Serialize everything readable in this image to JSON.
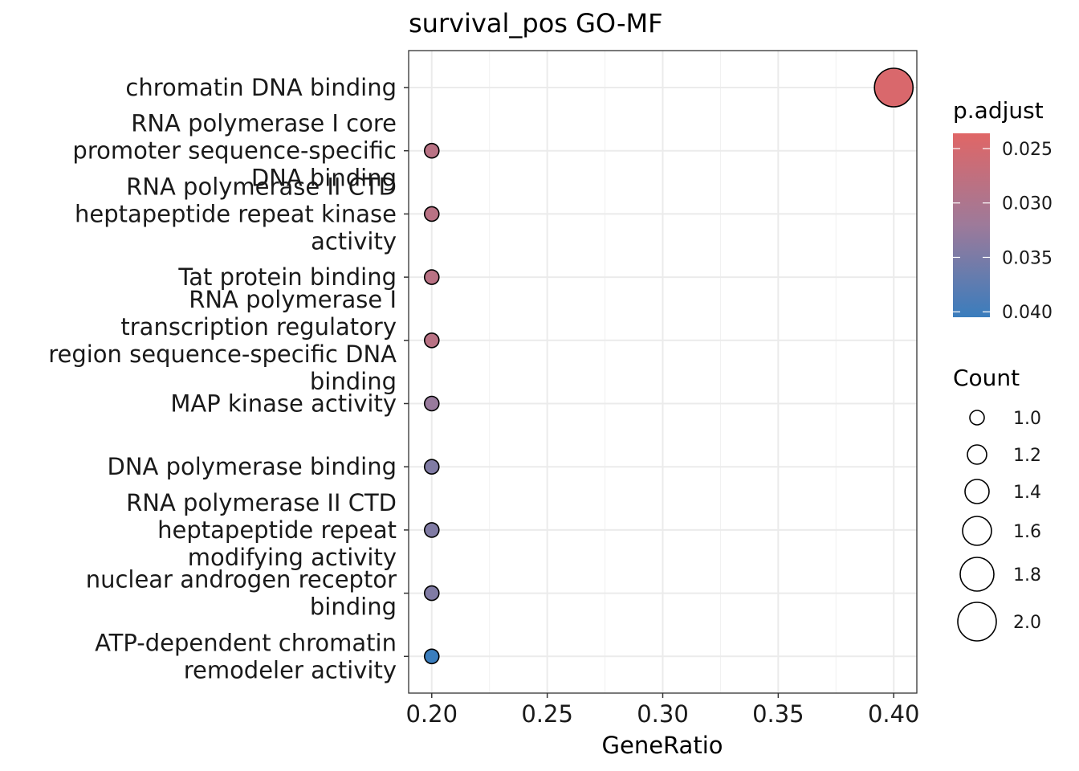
{
  "chart_data": {
    "type": "scatter",
    "title": "survival_pos GO-MF",
    "xlabel": "GeneRatio",
    "ylabel": "",
    "xlim": [
      0.19,
      0.41
    ],
    "x_ticks": [
      "0.20",
      "0.25",
      "0.30",
      "0.35",
      "0.40"
    ],
    "grid": true,
    "legend_position": "right",
    "terms": [
      {
        "label_lines": [
          "chromatin DNA binding"
        ],
        "gene_ratio": 0.4,
        "count": 2,
        "p_adjust": 0.0245
      },
      {
        "label_lines": [
          "RNA polymerase I core",
          "promoter sequence-specific",
          "DNA binding"
        ],
        "gene_ratio": 0.2,
        "count": 1,
        "p_adjust": 0.0285
      },
      {
        "label_lines": [
          "RNA polymerase II CTD",
          "heptapeptide repeat kinase",
          "activity"
        ],
        "gene_ratio": 0.2,
        "count": 1,
        "p_adjust": 0.0285
      },
      {
        "label_lines": [
          "Tat protein binding"
        ],
        "gene_ratio": 0.2,
        "count": 1,
        "p_adjust": 0.0285
      },
      {
        "label_lines": [
          "RNA polymerase I",
          "transcription regulatory",
          "region sequence-specific DNA",
          "binding"
        ],
        "gene_ratio": 0.2,
        "count": 1,
        "p_adjust": 0.0285
      },
      {
        "label_lines": [
          "MAP kinase activity"
        ],
        "gene_ratio": 0.2,
        "count": 1,
        "p_adjust": 0.0325
      },
      {
        "label_lines": [
          "DNA polymerase binding"
        ],
        "gene_ratio": 0.2,
        "count": 1,
        "p_adjust": 0.0345
      },
      {
        "label_lines": [
          "RNA polymerase II CTD",
          "heptapeptide repeat",
          "modifying activity"
        ],
        "gene_ratio": 0.2,
        "count": 1,
        "p_adjust": 0.0345
      },
      {
        "label_lines": [
          "nuclear androgen receptor",
          "binding"
        ],
        "gene_ratio": 0.2,
        "count": 1,
        "p_adjust": 0.0345
      },
      {
        "label_lines": [
          "ATP-dependent chromatin",
          "remodeler activity"
        ],
        "gene_ratio": 0.2,
        "count": 1,
        "p_adjust": 0.0405
      }
    ],
    "color_legend": {
      "title": "p.adjust",
      "range": [
        0.0236,
        0.0405
      ],
      "ticks": [
        0.025,
        0.03,
        0.035,
        0.04
      ],
      "tick_labels": [
        "0.025",
        "0.030",
        "0.035",
        "0.040"
      ],
      "low_color": "#e06666",
      "mid_color": "#9d7a9a",
      "high_color": "#3a7dbd"
    },
    "size_legend": {
      "title": "Count",
      "values": [
        1.0,
        1.2,
        1.4,
        1.6,
        1.8,
        2.0
      ],
      "labels": [
        "1.0",
        "1.2",
        "1.4",
        "1.6",
        "1.8",
        "2.0"
      ]
    }
  }
}
